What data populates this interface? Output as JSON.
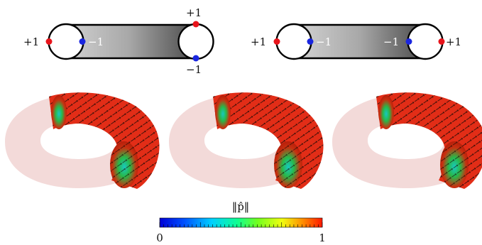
{
  "schematics": [
    {
      "left_outer": "+1",
      "left_inner": "−1",
      "right_top": "+1",
      "right_bottom": "−1"
    },
    {
      "left_outer": "+1",
      "left_inner": "−1",
      "right_inner": "−1",
      "right_outer": "+1"
    }
  ],
  "colorbar": {
    "title": "‖p̂‖",
    "min_label": "0",
    "max_label": "1"
  },
  "colors": {
    "positive_point": "#e8141b",
    "negative_point": "#1a26e0",
    "field_red": "#e52a14",
    "torus_ghost": "#f3d9d8"
  }
}
